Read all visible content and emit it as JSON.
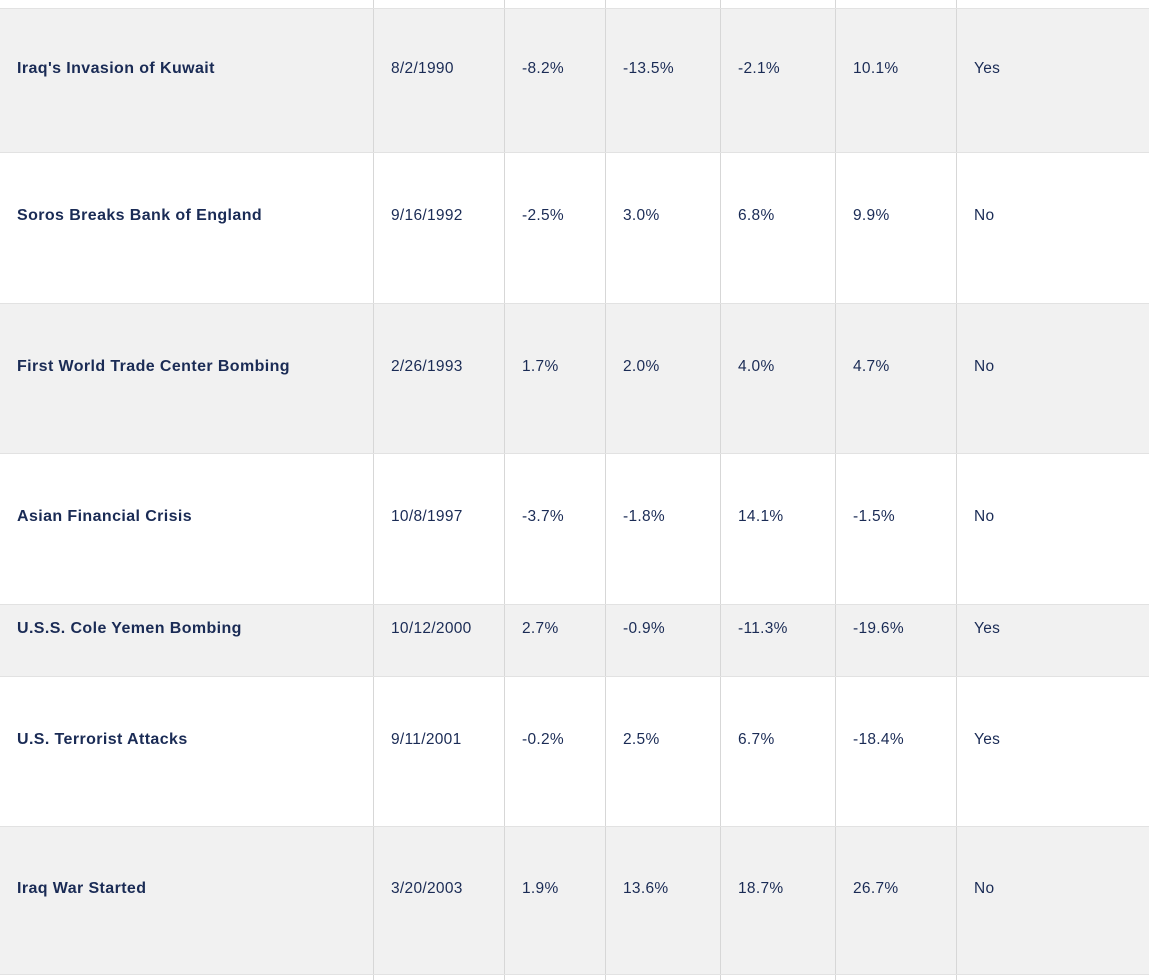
{
  "chart_data": {
    "type": "table",
    "rows": [
      [
        "Iraq's Invasion of Kuwait",
        "8/2/1990",
        "-8.2%",
        "-13.5%",
        "-2.1%",
        "10.1%",
        "Yes"
      ],
      [
        "Soros Breaks Bank of England",
        "9/16/1992",
        "-2.5%",
        "3.0%",
        "6.8%",
        "9.9%",
        "No"
      ],
      [
        "First World Trade Center Bombing",
        "2/26/1993",
        "1.7%",
        "2.0%",
        "4.0%",
        "4.7%",
        "No"
      ],
      [
        "Asian Financial Crisis",
        "10/8/1997",
        "-3.7%",
        "-1.8%",
        "14.1%",
        "-1.5%",
        "No"
      ],
      [
        "U.S.S. Cole Yemen Bombing",
        "10/12/2000",
        "2.7%",
        "-0.9%",
        "-11.3%",
        "-19.6%",
        "Yes"
      ],
      [
        "U.S. Terrorist Attacks",
        "9/11/2001",
        "-0.2%",
        "2.5%",
        "6.7%",
        "-18.4%",
        "Yes"
      ],
      [
        "Iraq War Started",
        "3/20/2003",
        "1.9%",
        "13.6%",
        "18.7%",
        "26.7%",
        "No"
      ]
    ]
  },
  "colors": {
    "row_shade": "#f1f1f1",
    "row_white": "#ffffff",
    "text": "#1a2b55",
    "border_vertical": "#d7d7d7",
    "border_horizontal": "#e2e2e2"
  }
}
